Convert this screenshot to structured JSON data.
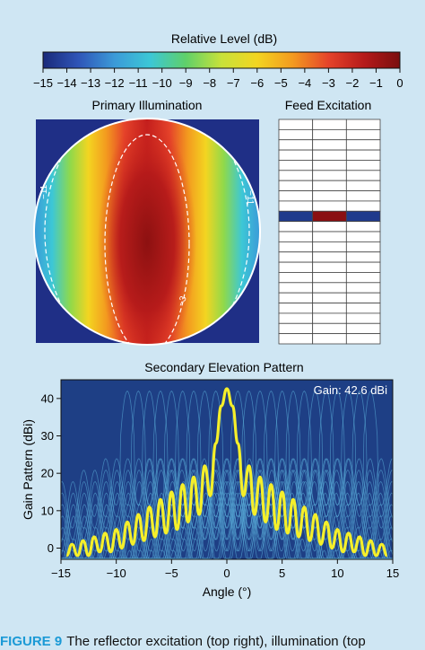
{
  "colorbar": {
    "title": "Relative Level (dB)",
    "ticks": [
      "−15",
      "−14",
      "−13",
      "−12",
      "−11",
      "−10",
      "−9",
      "−8",
      "−7",
      "−6",
      "−5",
      "−4",
      "−3",
      "−2",
      "−1",
      "0"
    ],
    "range": [
      -15,
      0
    ],
    "colormap": [
      "#1a2a7a",
      "#2f55b8",
      "#3b9ad8",
      "#3cc7d6",
      "#5fd06a",
      "#c8e23a",
      "#f3d521",
      "#f39a1f",
      "#e5432a",
      "#b51a1a",
      "#7a0e0e"
    ]
  },
  "primary_illumination": {
    "title": "Primary Illumination",
    "contour_labels": [
      "−11",
      "−11",
      "−3"
    ]
  },
  "feed_excitation": {
    "title": "Feed Excitation",
    "rows": 22,
    "columns": 3,
    "excited_row": 9,
    "cell_colors": [
      "#1f3a8c",
      "#8a0f12",
      "#1f3a8c"
    ]
  },
  "chart_data": {
    "type": "line",
    "title": "Secondary Elevation Pattern",
    "xlabel": "Angle (°)",
    "ylabel": "Gain Pattern (dBi)",
    "xlim": [
      -15,
      15
    ],
    "ylim": [
      -3,
      45
    ],
    "xticks": [
      "−15",
      "−10",
      "−5",
      "0",
      "5",
      "10",
      "15"
    ],
    "yticks": [
      "0",
      "10",
      "20",
      "30",
      "40"
    ],
    "grid": false,
    "annotation": "Gain: 42.6 dBi",
    "background_color": "#1e3f85",
    "series": [
      {
        "color": "#f5ef2a",
        "x": [
          -14.5,
          -14.0,
          -13.5,
          -13.0,
          -12.5,
          -12.0,
          -11.5,
          -11.0,
          -10.5,
          -10.0,
          -9.5,
          -9.0,
          -8.5,
          -8.0,
          -7.5,
          -7.0,
          -6.5,
          -6.0,
          -5.5,
          -5.0,
          -4.5,
          -4.0,
          -3.5,
          -3.0,
          -2.5,
          -2.0,
          -1.5,
          -1.0,
          -0.5,
          0.0,
          0.5,
          1.0,
          1.5,
          2.0,
          2.5,
          3.0,
          3.5,
          4.0,
          4.5,
          5.0,
          5.5,
          6.0,
          6.5,
          7.0,
          7.5,
          8.0,
          8.5,
          9.0,
          9.5,
          10.0,
          10.5,
          11.0,
          11.5,
          12.0,
          12.5,
          13.0,
          13.5,
          14.0,
          14.5
        ],
        "y": [
          -2,
          1,
          -2,
          2,
          -2,
          3,
          -1,
          4,
          -1,
          5,
          0,
          7,
          1,
          9,
          2,
          11,
          3,
          13,
          4,
          15,
          5,
          17,
          7,
          19,
          9,
          22,
          14,
          28,
          38,
          42.6,
          38,
          28,
          14,
          22,
          9,
          19,
          7,
          17,
          5,
          15,
          4,
          13,
          3,
          11,
          2,
          9,
          1,
          7,
          0,
          5,
          -1,
          4,
          -1,
          3,
          -2,
          2,
          -2,
          1,
          -2
        ]
      }
    ],
    "background_series": {
      "color": "#5fb6e0",
      "peak_angles": [
        -9,
        -8,
        -7,
        -6,
        -5,
        -4,
        -3,
        -2,
        -1,
        1,
        2,
        3,
        4,
        5,
        6,
        7,
        8,
        9,
        10,
        11,
        12,
        13
      ],
      "peak_gain": 42
    }
  },
  "caption": {
    "label": "FIGURE 9",
    "text": "The reflector excitation (top right), illumination (top"
  }
}
